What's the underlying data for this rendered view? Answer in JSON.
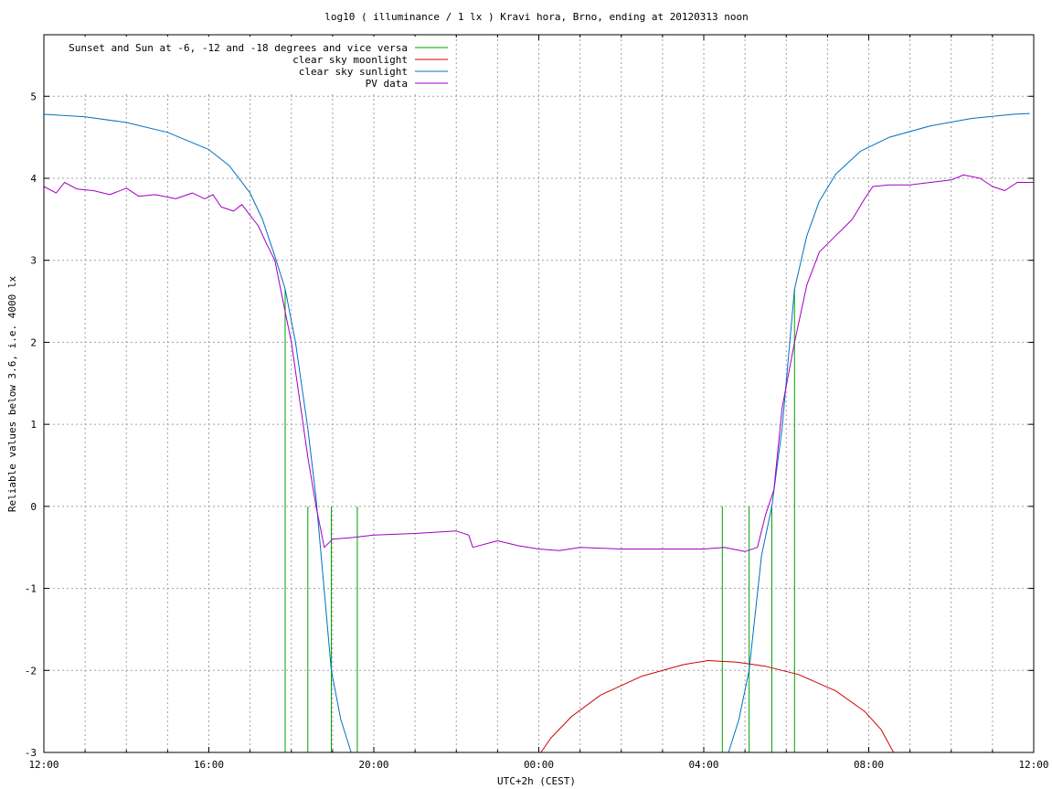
{
  "chart_data": {
    "type": "line",
    "title": "log10 ( illuminance / 1 lx ) Kravi hora, Brno, ending at 20120313 noon",
    "xlabel": "UTC+2h (CEST)",
    "ylabel": "Reliable values below 3.6, i.e. 4000 lx",
    "xlim_hours": [
      0,
      24
    ],
    "ylim": [
      -3,
      5.75
    ],
    "grid": true,
    "legend_position": "top-left",
    "x_tick_labels": [
      {
        "h": 0,
        "label": "12:00"
      },
      {
        "h": 4,
        "label": "16:00"
      },
      {
        "h": 8,
        "label": "20:00"
      },
      {
        "h": 12,
        "label": "00:00"
      },
      {
        "h": 16,
        "label": "04:00"
      },
      {
        "h": 20,
        "label": "08:00"
      },
      {
        "h": 24,
        "label": "12:00"
      }
    ],
    "y_ticks": [
      -3,
      -2,
      -1,
      0,
      1,
      2,
      3,
      4,
      5
    ],
    "series": [
      {
        "name": "Sunset and Sun at -6, -12 and -18 degrees and vice versa",
        "color": "#00a000",
        "style": "vertical-lines",
        "events": [
          {
            "h": 5.85,
            "y_top": 2.65
          },
          {
            "h": 6.4,
            "y_top": 0.0
          },
          {
            "h": 6.97,
            "y_top": 0.0
          },
          {
            "h": 7.6,
            "y_top": 0.0
          },
          {
            "h": 16.45,
            "y_top": 0.0
          },
          {
            "h": 17.1,
            "y_top": 0.0
          },
          {
            "h": 17.65,
            "y_top": 0.0
          },
          {
            "h": 18.2,
            "y_top": 2.65
          }
        ]
      },
      {
        "name": "clear sky moonlight",
        "color": "#d00000",
        "points": [
          [
            12.05,
            -3.0
          ],
          [
            12.3,
            -2.82
          ],
          [
            12.8,
            -2.56
          ],
          [
            13.5,
            -2.3
          ],
          [
            14.5,
            -2.07
          ],
          [
            15.5,
            -1.93
          ],
          [
            16.1,
            -1.88
          ],
          [
            16.8,
            -1.9
          ],
          [
            17.5,
            -1.95
          ],
          [
            18.3,
            -2.05
          ],
          [
            19.2,
            -2.25
          ],
          [
            19.9,
            -2.5
          ],
          [
            20.3,
            -2.72
          ],
          [
            20.6,
            -3.0
          ]
        ]
      },
      {
        "name": "clear sky sunlight",
        "color": "#0070c0",
        "points": [
          [
            0.0,
            4.78
          ],
          [
            1.0,
            4.75
          ],
          [
            2.0,
            4.68
          ],
          [
            3.0,
            4.56
          ],
          [
            4.0,
            4.35
          ],
          [
            4.5,
            4.15
          ],
          [
            5.0,
            3.82
          ],
          [
            5.3,
            3.5
          ],
          [
            5.6,
            3.05
          ],
          [
            5.85,
            2.65
          ],
          [
            6.1,
            2.0
          ],
          [
            6.4,
            0.95
          ],
          [
            6.6,
            0.1
          ],
          [
            6.97,
            -2.0
          ],
          [
            7.2,
            -2.6
          ],
          [
            7.45,
            -3.0
          ],
          [
            16.6,
            -3.0
          ],
          [
            16.85,
            -2.6
          ],
          [
            17.1,
            -2.0
          ],
          [
            17.4,
            -0.6
          ],
          [
            17.65,
            0.0
          ],
          [
            17.9,
            0.95
          ],
          [
            18.2,
            2.65
          ],
          [
            18.5,
            3.3
          ],
          [
            18.8,
            3.72
          ],
          [
            19.2,
            4.05
          ],
          [
            19.8,
            4.33
          ],
          [
            20.5,
            4.5
          ],
          [
            21.5,
            4.64
          ],
          [
            22.5,
            4.73
          ],
          [
            23.5,
            4.78
          ],
          [
            23.9,
            4.79
          ]
        ]
      },
      {
        "name": "PV data",
        "color": "#a000c0",
        "points": [
          [
            0.0,
            3.9
          ],
          [
            0.3,
            3.82
          ],
          [
            0.5,
            3.95
          ],
          [
            0.8,
            3.87
          ],
          [
            1.2,
            3.85
          ],
          [
            1.6,
            3.8
          ],
          [
            2.0,
            3.88
          ],
          [
            2.3,
            3.78
          ],
          [
            2.7,
            3.8
          ],
          [
            3.2,
            3.75
          ],
          [
            3.6,
            3.82
          ],
          [
            3.9,
            3.75
          ],
          [
            4.1,
            3.8
          ],
          [
            4.3,
            3.65
          ],
          [
            4.6,
            3.6
          ],
          [
            4.8,
            3.68
          ],
          [
            5.0,
            3.55
          ],
          [
            5.2,
            3.42
          ],
          [
            5.4,
            3.2
          ],
          [
            5.6,
            3.0
          ],
          [
            5.8,
            2.5
          ],
          [
            6.0,
            2.0
          ],
          [
            6.2,
            1.3
          ],
          [
            6.4,
            0.6
          ],
          [
            6.6,
            0.0
          ],
          [
            6.8,
            -0.5
          ],
          [
            7.0,
            -0.4
          ],
          [
            7.5,
            -0.38
          ],
          [
            8.0,
            -0.35
          ],
          [
            9.0,
            -0.33
          ],
          [
            10.0,
            -0.3
          ],
          [
            10.3,
            -0.35
          ],
          [
            10.4,
            -0.5
          ],
          [
            11.0,
            -0.42
          ],
          [
            11.5,
            -0.48
          ],
          [
            12.0,
            -0.52
          ],
          [
            12.5,
            -0.54
          ],
          [
            13.0,
            -0.5
          ],
          [
            14.0,
            -0.52
          ],
          [
            15.0,
            -0.52
          ],
          [
            16.0,
            -0.52
          ],
          [
            16.5,
            -0.5
          ],
          [
            17.0,
            -0.55
          ],
          [
            17.3,
            -0.5
          ],
          [
            17.5,
            -0.1
          ],
          [
            17.7,
            0.2
          ],
          [
            17.9,
            1.2
          ],
          [
            18.2,
            2.0
          ],
          [
            18.5,
            2.7
          ],
          [
            18.8,
            3.1
          ],
          [
            19.2,
            3.3
          ],
          [
            19.6,
            3.5
          ],
          [
            19.9,
            3.75
          ],
          [
            20.1,
            3.9
          ],
          [
            20.5,
            3.92
          ],
          [
            21.0,
            3.92
          ],
          [
            21.5,
            3.95
          ],
          [
            22.0,
            3.98
          ],
          [
            22.3,
            4.04
          ],
          [
            22.7,
            4.0
          ],
          [
            23.0,
            3.9
          ],
          [
            23.3,
            3.85
          ],
          [
            23.6,
            3.95
          ],
          [
            24.0,
            3.95
          ]
        ]
      }
    ]
  }
}
